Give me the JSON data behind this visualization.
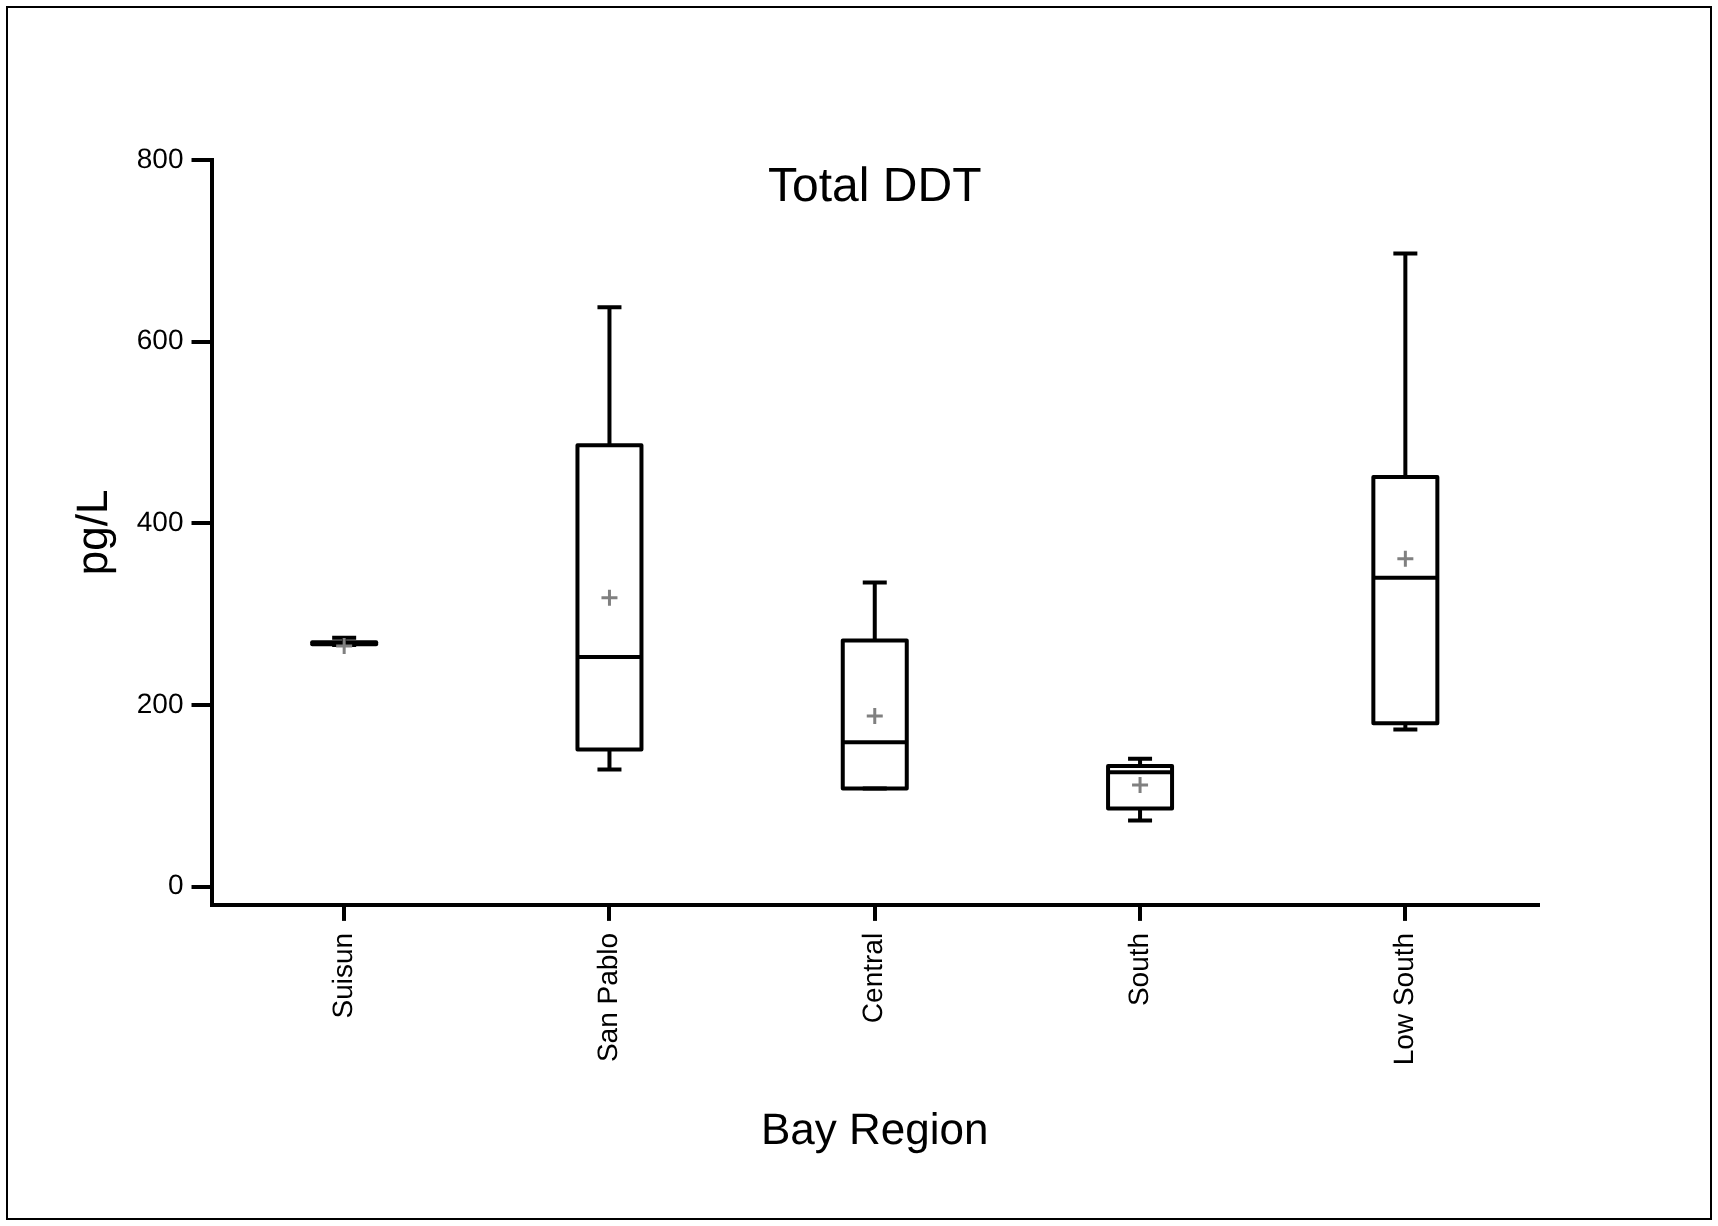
{
  "chart_data": {
    "type": "box",
    "title": "Total DDT",
    "xlabel": "Bay Region",
    "ylabel": "pg/L",
    "categories": [
      "Suisun",
      "San Pablo",
      "Central",
      "South",
      "Low South"
    ],
    "boxes": [
      {
        "low": 266,
        "q1": 267,
        "median": 268,
        "q3": 269,
        "high": 274,
        "mean": 265
      },
      {
        "low": 129,
        "q1": 151,
        "median": 253,
        "q3": 486,
        "high": 638,
        "mean": 318
      },
      {
        "low": 108,
        "q1": 108,
        "median": 159,
        "q3": 271,
        "high": 335,
        "mean": 188
      },
      {
        "low": 73,
        "q1": 86,
        "median": 126,
        "q3": 133,
        "high": 141,
        "mean": 112
      },
      {
        "low": 173,
        "q1": 180,
        "median": 340,
        "q3": 451,
        "high": 697,
        "mean": 361
      }
    ],
    "color": "#000000",
    "ylim": [
      -20,
      800
    ],
    "yticks": [
      0,
      200,
      400,
      600,
      800
    ],
    "grid": false,
    "legend": false
  }
}
